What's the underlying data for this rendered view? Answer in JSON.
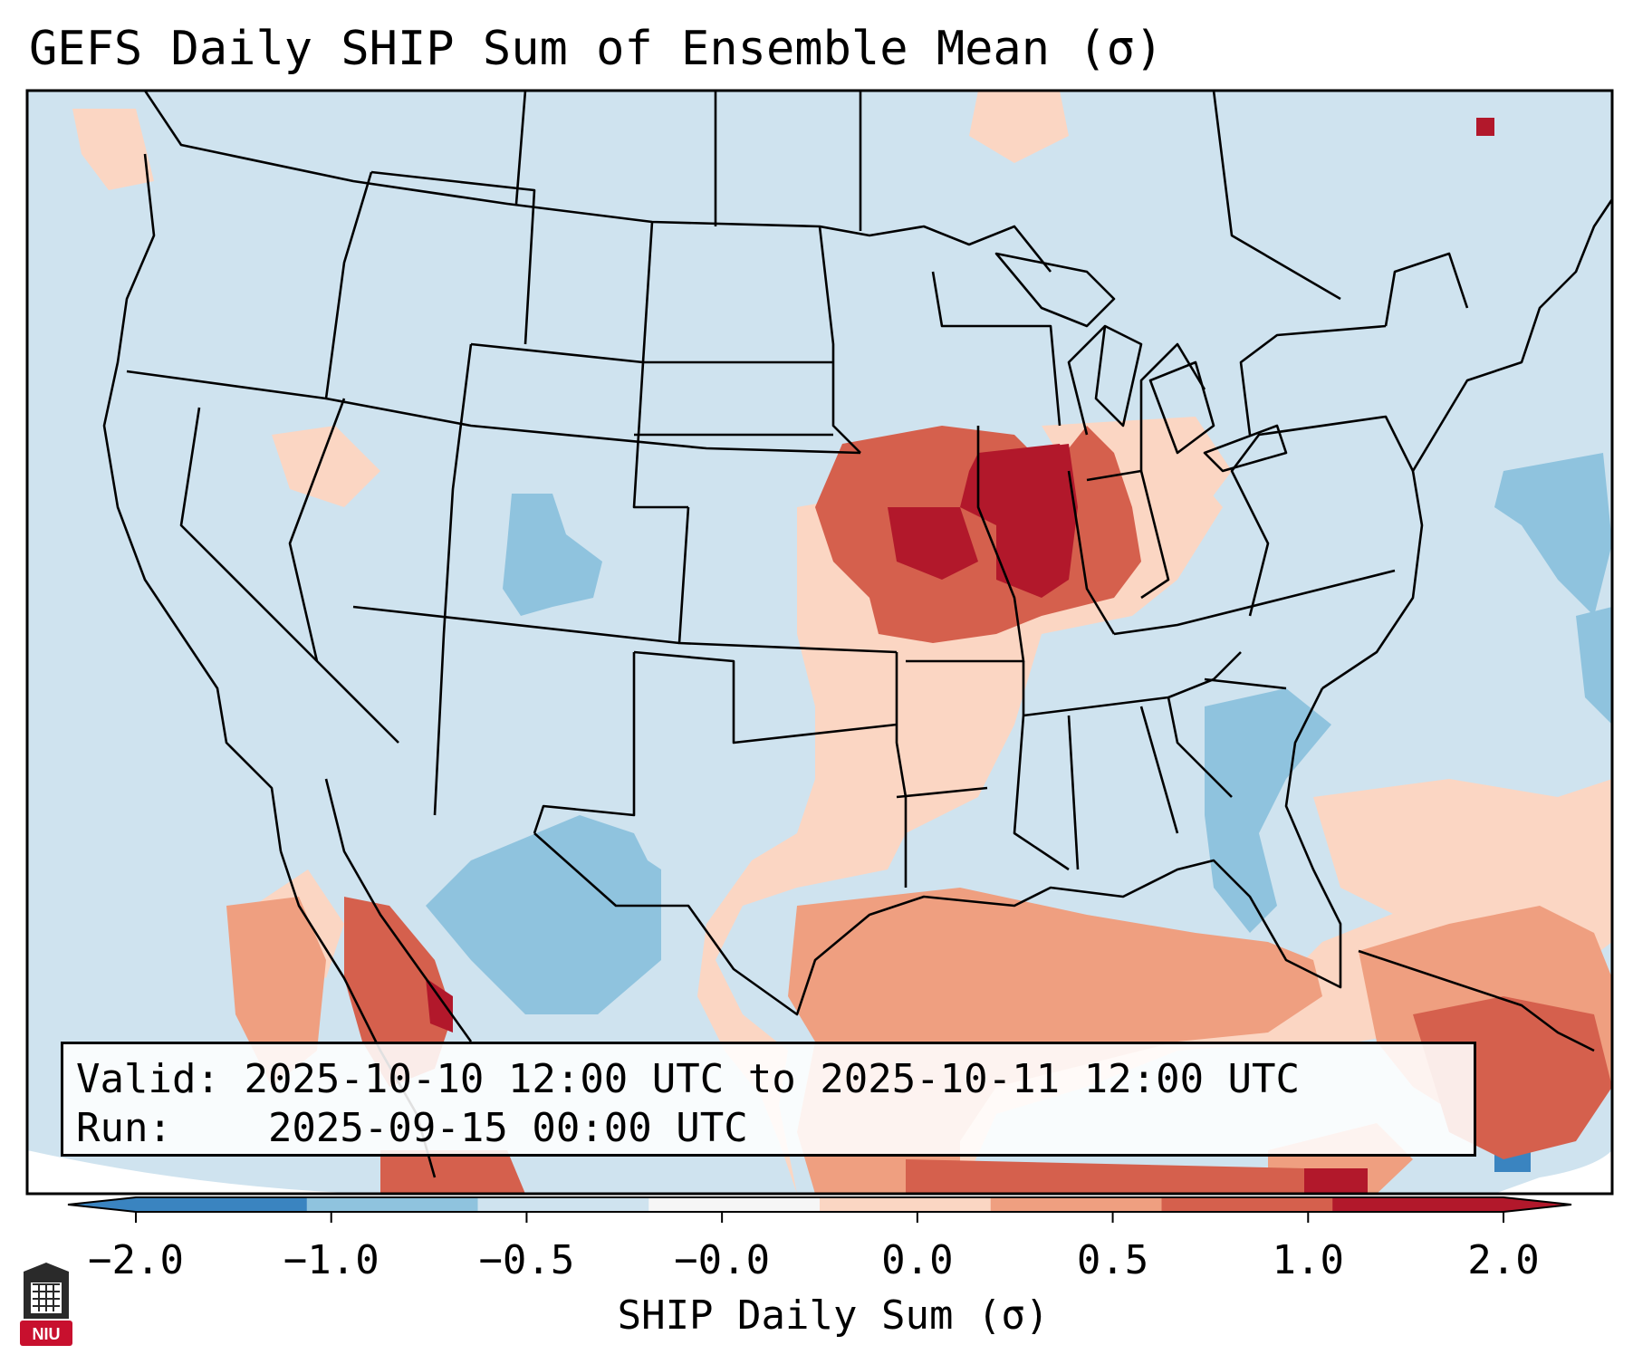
{
  "title": "GEFS Daily SHIP Sum of Ensemble Mean (σ)",
  "info": {
    "valid_label": "Valid:",
    "valid_value": "2025-10-10 12:00 UTC to 2025-10-11 12:00 UTC",
    "run_label": "Run:",
    "run_value": "2025-09-15 00:00 UTC"
  },
  "colorbar": {
    "label": "SHIP Daily Sum (σ)",
    "ticks": [
      "−2.0",
      "−1.0",
      "−0.5",
      "−0.0",
      "0.0",
      "0.5",
      "1.0",
      "2.0"
    ],
    "colors": [
      "#3a84c0",
      "#8fc3de",
      "#cfe3ef",
      "#f6f6f6",
      "#fbd6c3",
      "#ef9f80",
      "#d5604d",
      "#b2182b"
    ],
    "extend": "both"
  },
  "map": {
    "projection": "Lambert conformal, CONUS",
    "background_class_color": "#cfe3ef",
    "max_anomaly_region": "Missouri / Iowa / Illinois",
    "max_anomaly_class": "1.0 to 2.0"
  },
  "logo": {
    "text": "NIU"
  }
}
